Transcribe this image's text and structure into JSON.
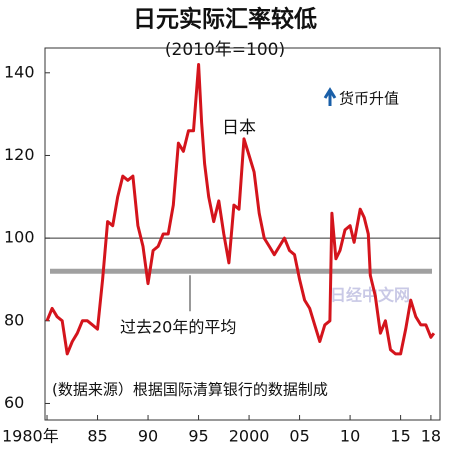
{
  "chart_data": {
    "type": "line",
    "title": "日元实际汇率较低",
    "subtitle": "(2010年=100)",
    "legend_note": "货币升值",
    "source": "(数据来源）根据国际清算银行的数据制成",
    "watermark": "日经中文网",
    "x": [
      1980,
      1980.5,
      1981,
      1981.5,
      1982,
      1982.5,
      1983,
      1983.5,
      1984,
      1984.5,
      1985,
      1985.5,
      1986,
      1986.5,
      1987,
      1987.5,
      1988,
      1988.5,
      1989,
      1989.5,
      1990,
      1990.5,
      1991,
      1991.5,
      1992,
      1992.5,
      1993,
      1993.5,
      1994,
      1994.5,
      1995,
      1995.3,
      1995.6,
      1996,
      1996.5,
      1997,
      1997.5,
      1998,
      1998.5,
      1999,
      1999.5,
      2000,
      2000.5,
      2001,
      2001.5,
      2002,
      2002.5,
      2003,
      2003.5,
      2004,
      2004.5,
      2005,
      2005.5,
      2006,
      2006.5,
      2007,
      2007.5,
      2008,
      2008.2,
      2008.6,
      2009,
      2009.5,
      2010,
      2010.4,
      2011,
      2011.4,
      2011.8,
      2012,
      2012.5,
      2013,
      2013.5,
      2014,
      2014.5,
      2015,
      2015.5,
      2016,
      2016.5,
      2017,
      2017.5,
      2018,
      2018.3
    ],
    "series": [
      {
        "name": "日本",
        "color": "#d4141c",
        "values": [
          80,
          83,
          81,
          80,
          72,
          75,
          77,
          80,
          80,
          79,
          78,
          90,
          104,
          103,
          110,
          115,
          114,
          115,
          103,
          98,
          89,
          97,
          98,
          101,
          101,
          108,
          123,
          121,
          126,
          126,
          142,
          128,
          118,
          110,
          104,
          109,
          101,
          94,
          108,
          107,
          124,
          120,
          116,
          106,
          100,
          98,
          96,
          98,
          100,
          97,
          96,
          90,
          85,
          83,
          79,
          75,
          79,
          80,
          106,
          95,
          97,
          102,
          103,
          99,
          107,
          105,
          101,
          91,
          86,
          77,
          80,
          73,
          72,
          72,
          78,
          85,
          81,
          79,
          79,
          76,
          77
        ]
      }
    ],
    "average": {
      "label": "过去20年的平均",
      "value": 92,
      "color": "#a0a0a0"
    },
    "reference_line": 100,
    "xlim": [
      1979.8,
      2018.9
    ],
    "ylim": [
      56,
      146
    ],
    "yticks": [
      60,
      80,
      100,
      120,
      140
    ],
    "xticks": [
      {
        "value": 1980,
        "label": "1980年"
      },
      {
        "value": 1985,
        "label": "85"
      },
      {
        "value": 1990,
        "label": "90"
      },
      {
        "value": 1995,
        "label": "95"
      },
      2000,
      {
        "value": 2005,
        "label": "05"
      },
      {
        "value": 2010,
        "label": "10"
      },
      {
        "value": 2015,
        "label": "15"
      },
      {
        "value": 2018,
        "label": "18"
      }
    ]
  }
}
